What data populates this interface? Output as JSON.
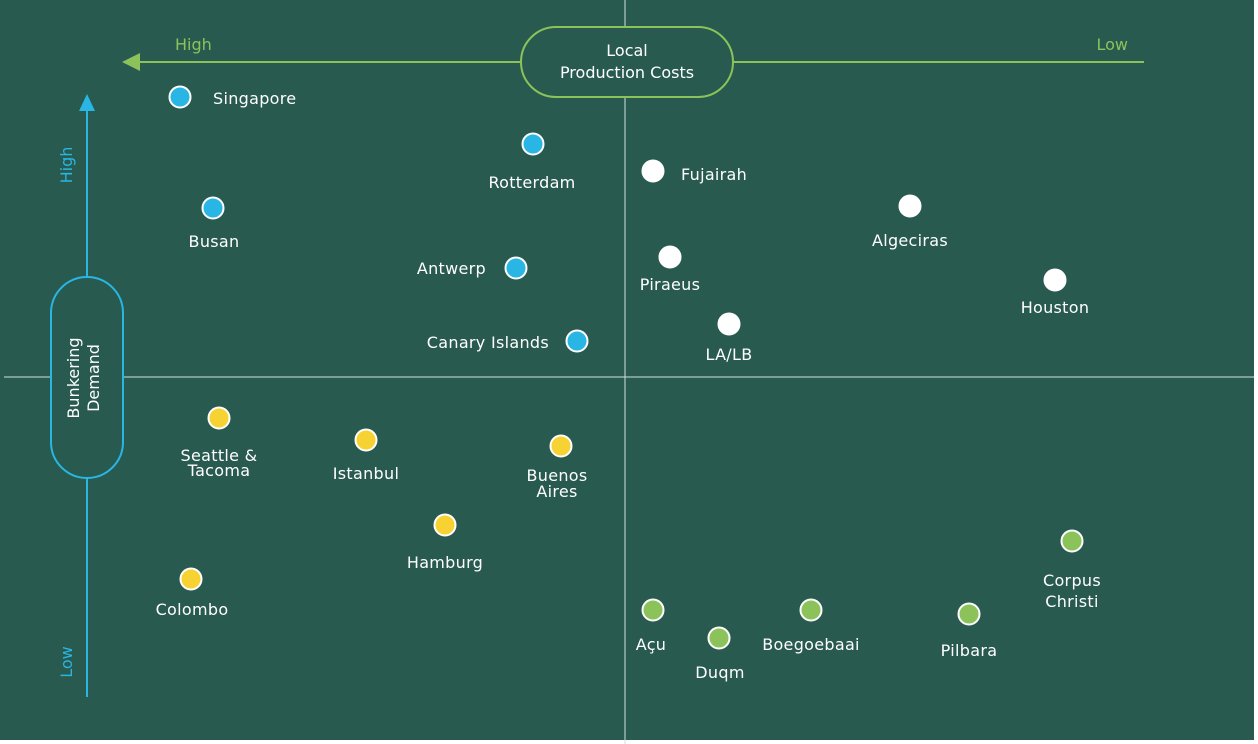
{
  "colors": {
    "background": "#285a4f",
    "blue": "#29b6e4",
    "white": "#ffffff",
    "yellow": "#f6d333",
    "green": "#8bc35a",
    "divider": "#cfe1dc",
    "x_axis": "#8bc35a",
    "y_axis": "#29b6e4"
  },
  "x_axis": {
    "title_line1": "Local",
    "title_line2": "Production Costs",
    "high_label": "High",
    "low_label": "Low"
  },
  "y_axis": {
    "title_line1": "Bunkering",
    "title_line2": "Demand",
    "high_label": "High",
    "low_label": "Low"
  },
  "ports": [
    {
      "id": "singapore",
      "group": "blue",
      "label": [
        "Singapore"
      ]
    },
    {
      "id": "rotterdam",
      "group": "blue",
      "label": [
        "Rotterdam"
      ]
    },
    {
      "id": "busan",
      "group": "blue",
      "label": [
        "Busan"
      ]
    },
    {
      "id": "antwerp",
      "group": "blue",
      "label": [
        "Antwerp"
      ]
    },
    {
      "id": "canary-islands",
      "group": "blue",
      "label": [
        "Canary Islands"
      ]
    },
    {
      "id": "fujairah",
      "group": "white",
      "label": [
        "Fujairah"
      ]
    },
    {
      "id": "algeciras",
      "group": "white",
      "label": [
        "Algeciras"
      ]
    },
    {
      "id": "piraeus",
      "group": "white",
      "label": [
        "Piraeus"
      ]
    },
    {
      "id": "houston",
      "group": "white",
      "label": [
        "Houston"
      ]
    },
    {
      "id": "la-lb",
      "group": "white",
      "label": [
        "LA/LB"
      ]
    },
    {
      "id": "seattle-tacoma",
      "group": "yellow",
      "label": [
        "Seattle &",
        "Tacoma"
      ]
    },
    {
      "id": "istanbul",
      "group": "yellow",
      "label": [
        "Istanbul"
      ]
    },
    {
      "id": "buenos-aires",
      "group": "yellow",
      "label": [
        "Buenos",
        "Aires"
      ]
    },
    {
      "id": "hamburg",
      "group": "yellow",
      "label": [
        "Hamburg"
      ]
    },
    {
      "id": "colombo",
      "group": "yellow",
      "label": [
        "Colombo"
      ]
    },
    {
      "id": "corpus-christi",
      "group": "green",
      "label": [
        "Corpus",
        "Christi"
      ]
    },
    {
      "id": "acu",
      "group": "green",
      "label": [
        "Açu"
      ]
    },
    {
      "id": "duqm",
      "group": "green",
      "label": [
        "Duqm"
      ]
    },
    {
      "id": "boegoebaai",
      "group": "green",
      "label": [
        "Boegoebaai"
      ]
    },
    {
      "id": "pilbara",
      "group": "green",
      "label": [
        "Pilbara"
      ]
    }
  ]
}
